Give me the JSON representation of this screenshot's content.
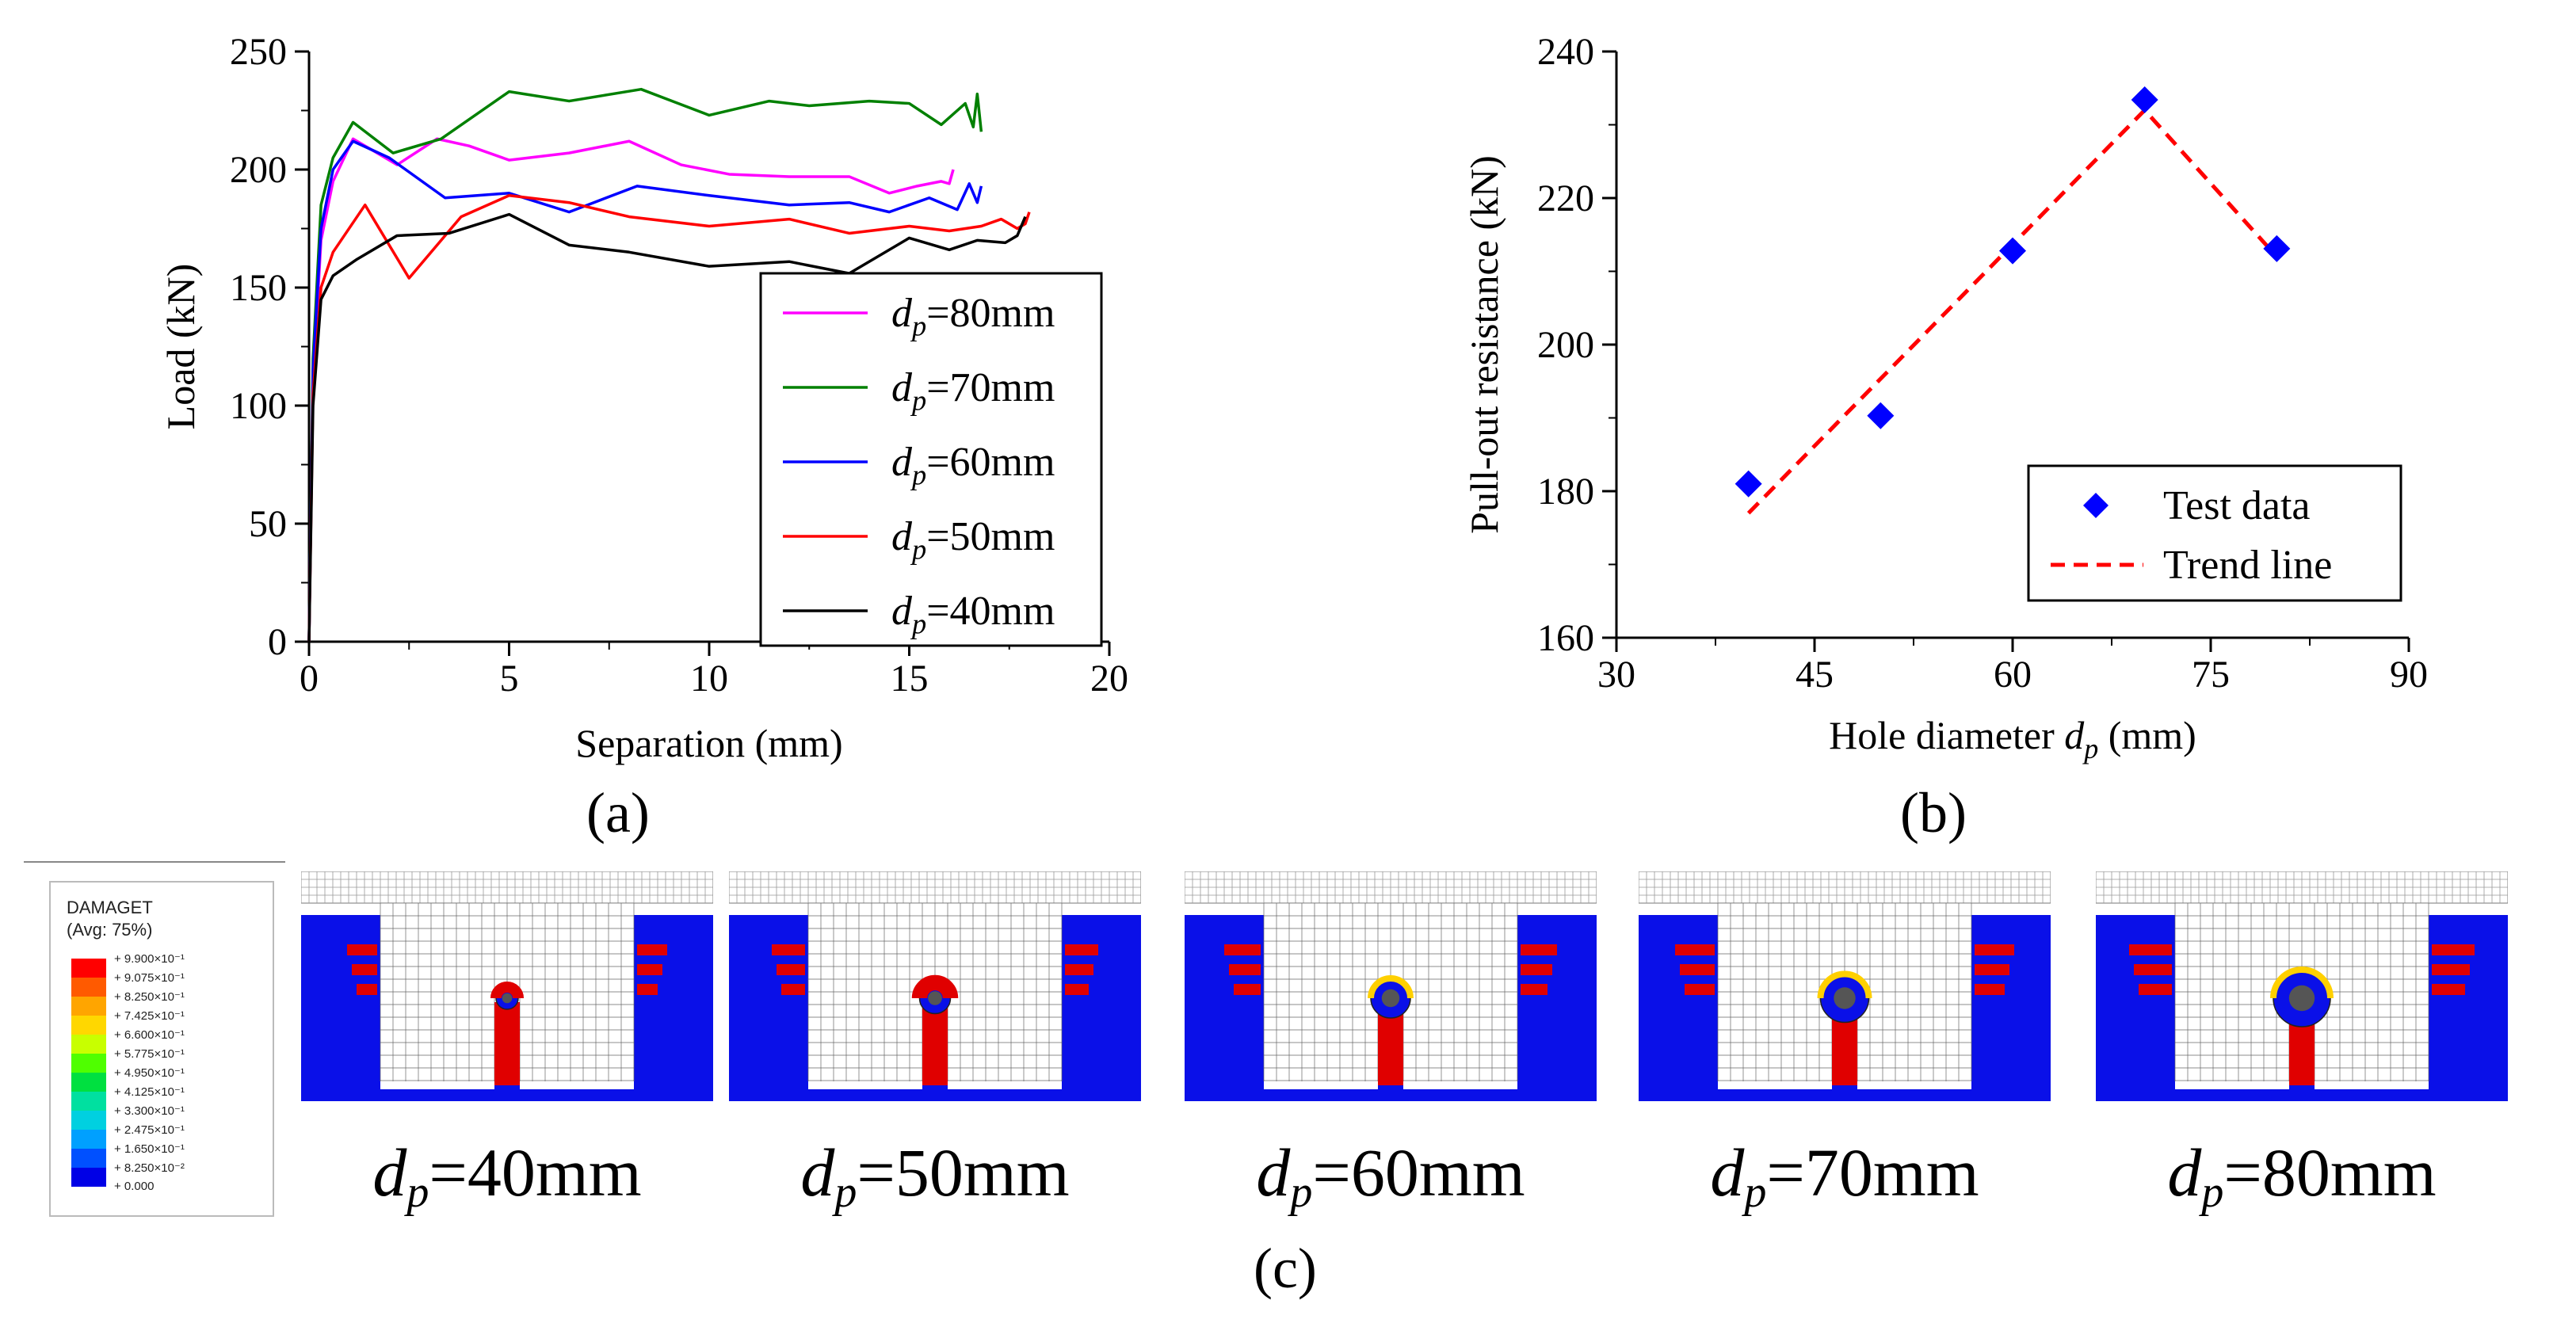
{
  "figure_labels": {
    "a": "(a)",
    "b": "(b)",
    "c": "(c)"
  },
  "chart_data": [
    {
      "type": "line",
      "id": "a",
      "xlabel": "Separation (mm)",
      "ylabel": "Load (kN)",
      "xlim": [
        0,
        20
      ],
      "ylim": [
        0,
        250
      ],
      "xticks": [
        0,
        5,
        10,
        15,
        20
      ],
      "yticks": [
        0,
        50,
        100,
        150,
        200,
        250
      ],
      "legend_placement": "bottom-right",
      "series": [
        {
          "name": "dp=80mm",
          "name_main": "d",
          "name_sub": "p",
          "name_rest": "=80mm",
          "color": "#ff00ff",
          "x": [
            0,
            0.1,
            0.3,
            0.6,
            1.1,
            1.6,
            2.2,
            3.2,
            4.0,
            5.0,
            6.5,
            8.0,
            9.3,
            10.5,
            12.0,
            13.5,
            14.5,
            15.2,
            15.8,
            16.0,
            16.1
          ],
          "y": [
            0,
            110,
            170,
            195,
            213,
            208,
            202,
            213,
            210,
            204,
            207,
            212,
            202,
            198,
            197,
            197,
            190,
            193,
            195,
            194,
            200
          ]
        },
        {
          "name": "dp=70mm",
          "name_main": "d",
          "name_sub": "p",
          "name_rest": "=70mm",
          "color": "#008000",
          "x": [
            0,
            0.1,
            0.3,
            0.6,
            1.1,
            2.1,
            3.3,
            5.0,
            6.5,
            8.3,
            10.0,
            11.5,
            12.5,
            14.0,
            15.0,
            15.8,
            16.4,
            16.6,
            16.7,
            16.8
          ],
          "y": [
            0,
            120,
            185,
            205,
            220,
            207,
            213,
            233,
            229,
            234,
            223,
            229,
            227,
            229,
            228,
            219,
            228,
            218,
            232,
            216
          ]
        },
        {
          "name": "dp=60mm",
          "name_main": "d",
          "name_sub": "p",
          "name_rest": "=60mm",
          "color": "#0000ff",
          "x": [
            0,
            0.1,
            0.3,
            0.6,
            1.1,
            2.0,
            3.4,
            5.0,
            6.5,
            8.2,
            10.0,
            12.0,
            13.5,
            14.5,
            15.5,
            16.2,
            16.5,
            16.7,
            16.8
          ],
          "y": [
            0,
            115,
            175,
            200,
            212,
            205,
            188,
            190,
            182,
            193,
            189,
            185,
            186,
            182,
            188,
            183,
            194,
            186,
            193
          ]
        },
        {
          "name": "dp=50mm",
          "name_main": "d",
          "name_sub": "p",
          "name_rest": "=50mm",
          "color": "#ff0000",
          "x": [
            0,
            0.1,
            0.3,
            0.6,
            1.4,
            2.5,
            3.8,
            5.0,
            6.5,
            8.0,
            10.0,
            12.0,
            13.5,
            15.0,
            16.0,
            16.8,
            17.3,
            17.7,
            17.9,
            18.0
          ],
          "y": [
            0,
            105,
            150,
            165,
            185,
            154,
            180,
            189,
            186,
            180,
            176,
            179,
            173,
            176,
            174,
            176,
            179,
            175,
            177,
            182
          ]
        },
        {
          "name": "dp=40mm",
          "name_main": "d",
          "name_sub": "p",
          "name_rest": "=40mm",
          "color": "#000000",
          "x": [
            0,
            0.1,
            0.3,
            0.6,
            1.2,
            2.2,
            3.5,
            5.0,
            6.5,
            8.0,
            10.0,
            12.0,
            13.5,
            15.0,
            16.0,
            16.7,
            17.4,
            17.7,
            17.9
          ],
          "y": [
            0,
            100,
            145,
            155,
            162,
            172,
            173,
            181,
            168,
            165,
            159,
            161,
            156,
            171,
            166,
            170,
            169,
            172,
            180
          ]
        }
      ]
    },
    {
      "type": "scatter",
      "id": "b",
      "xlabel": "Hole diameter dp (mm)",
      "xlabel_main": "Hole diameter ",
      "xlabel_var": "d",
      "xlabel_sub": "p",
      "xlabel_unit": " (mm)",
      "ylabel": "Pull-out resistance (kN)",
      "xlim": [
        30,
        90
      ],
      "ylim": [
        160,
        240
      ],
      "xticks": [
        30,
        45,
        60,
        75,
        90
      ],
      "yticks": [
        160,
        180,
        200,
        220,
        240
      ],
      "legend_placement": "bottom-right",
      "series": [
        {
          "name": "Test data",
          "marker": "diamond",
          "color": "#0000ff",
          "x": [
            40,
            50,
            60,
            70,
            80
          ],
          "y": [
            181,
            190.3,
            212.8,
            233.4,
            213.1
          ]
        },
        {
          "name": "Trend line",
          "style": "dashed",
          "color": "#ff0000",
          "x": [
            40,
            70,
            80
          ],
          "y": [
            177,
            232,
            212
          ]
        }
      ]
    }
  ],
  "fem": {
    "legend_title_1": "DAMAGET",
    "legend_title_2": "(Avg: 75%)",
    "legend_ticks": [
      "+ 9.900×10⁻¹",
      "+ 9.075×10⁻¹",
      "+ 8.250×10⁻¹",
      "+ 7.425×10⁻¹",
      "+ 6.600×10⁻¹",
      "+ 5.775×10⁻¹",
      "+ 4.950×10⁻¹",
      "+ 4.125×10⁻¹",
      "+ 3.300×10⁻¹",
      "+ 2.475×10⁻¹",
      "+ 1.650×10⁻¹",
      "+ 8.250×10⁻²",
      "+ 0.000"
    ],
    "legend_colors": [
      "#ff0000",
      "#ff5a00",
      "#ffa500",
      "#ffd700",
      "#c8ff00",
      "#4fff00",
      "#00e040",
      "#00e0a0",
      "#00d0e0",
      "#00a0ff",
      "#0050ff",
      "#0000e6"
    ],
    "panels": [
      {
        "main": "d",
        "sub": "p",
        "rest": "=40mm",
        "hole": 40
      },
      {
        "main": "d",
        "sub": "p",
        "rest": "=50mm",
        "hole": 50
      },
      {
        "main": "d",
        "sub": "p",
        "rest": "=60mm",
        "hole": 60
      },
      {
        "main": "d",
        "sub": "p",
        "rest": "=70mm",
        "hole": 70
      },
      {
        "main": "d",
        "sub": "p",
        "rest": "=80mm",
        "hole": 80
      }
    ]
  }
}
